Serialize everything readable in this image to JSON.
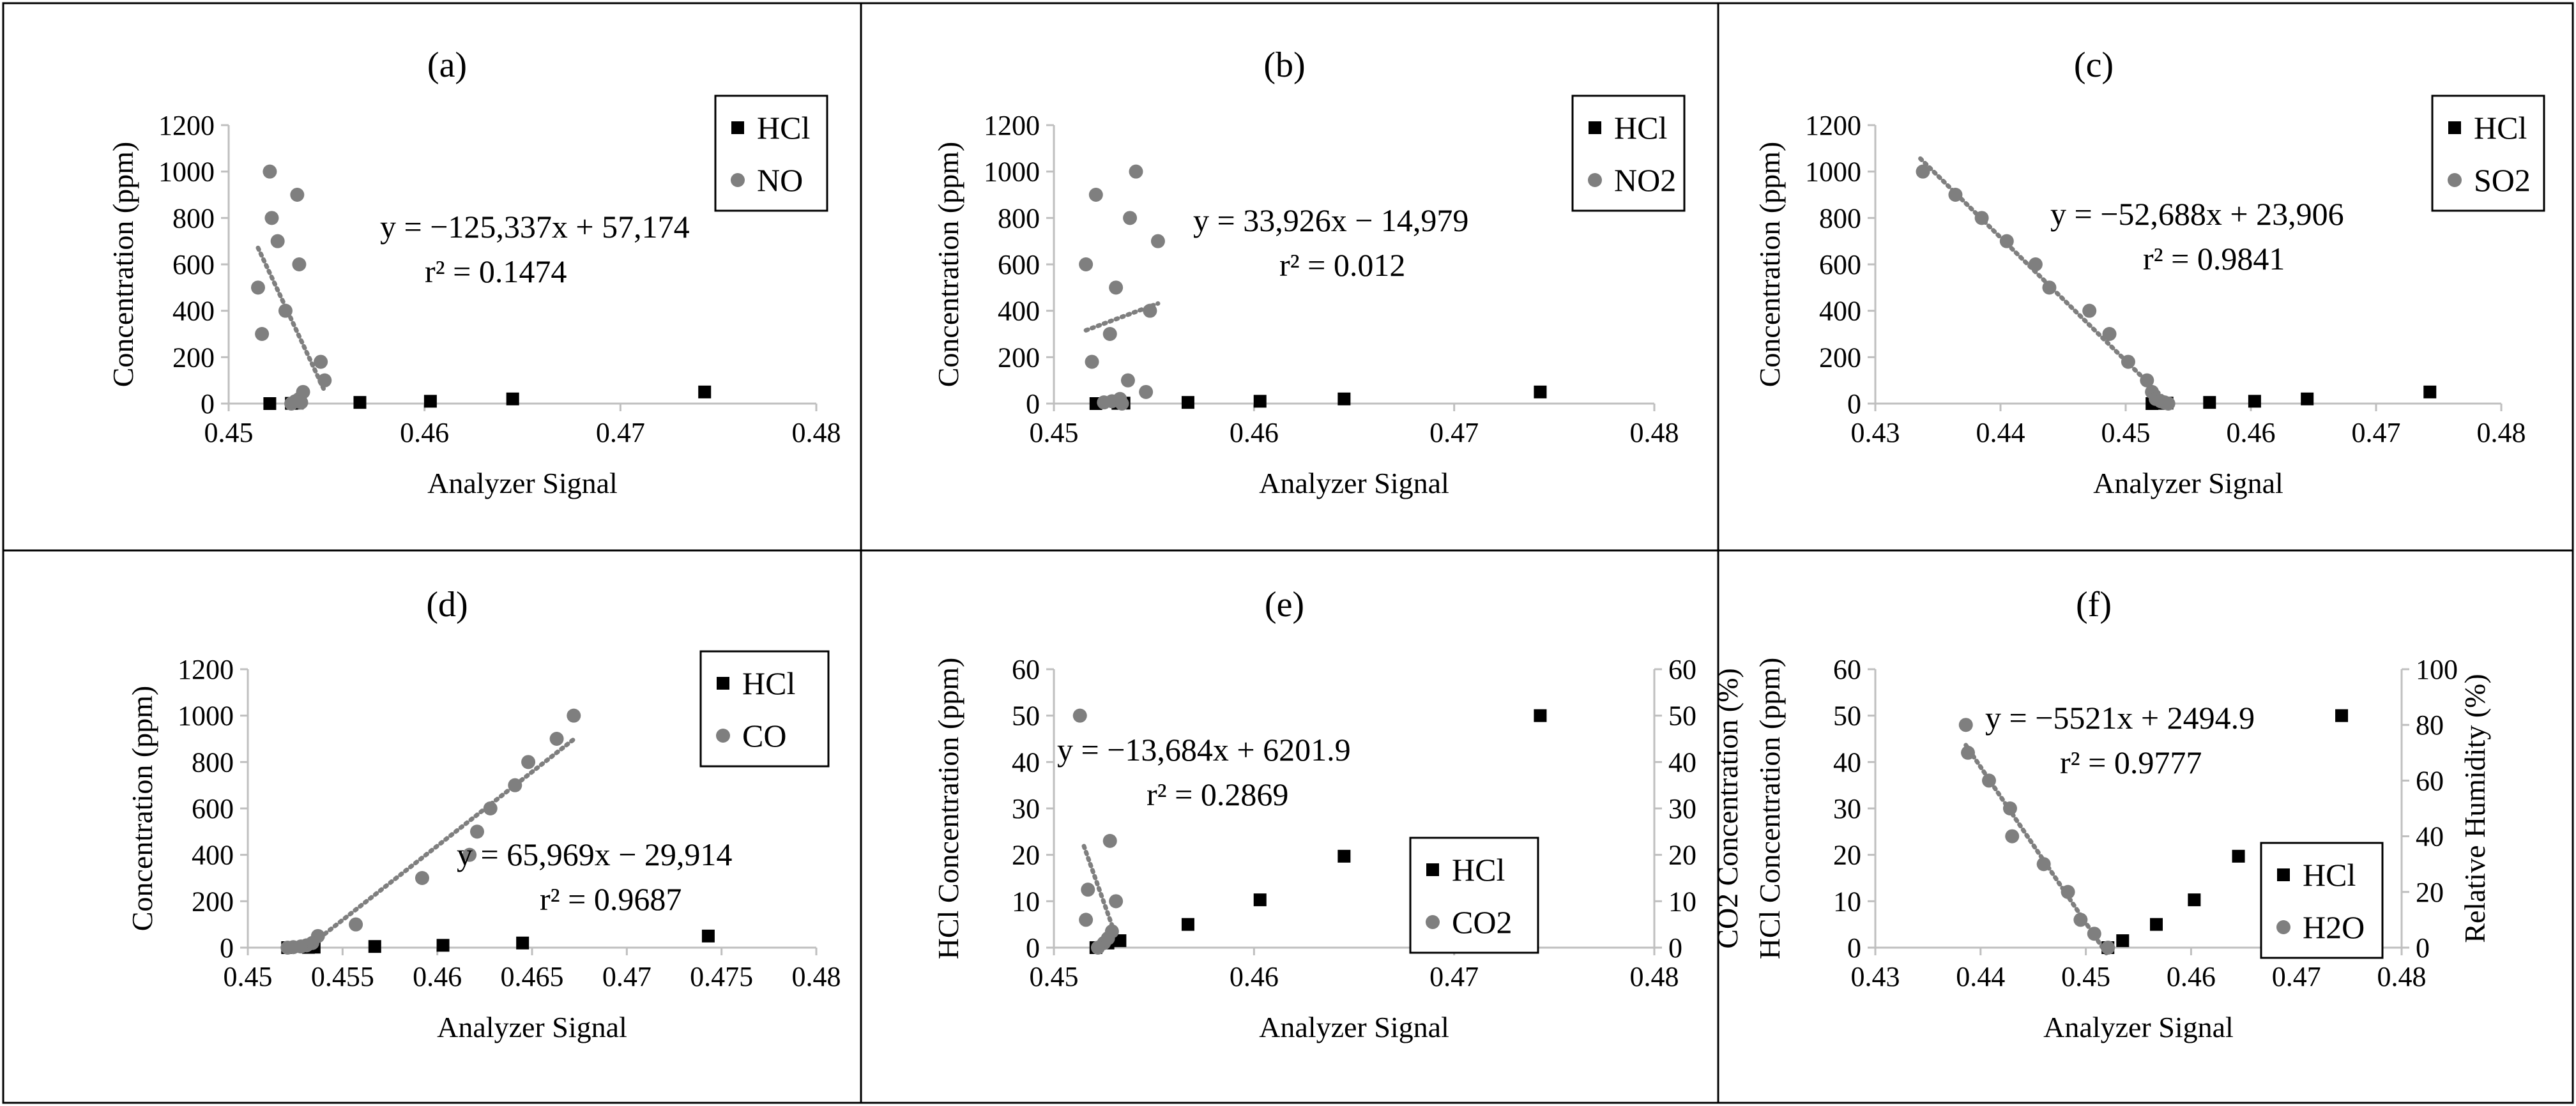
{
  "figure": {
    "description_none": ""
  },
  "chart_data": [
    {
      "panel": "(a)",
      "type": "scatter",
      "xlabel": "Analyzer  Signal",
      "ylabel": "Concentration  (ppm)",
      "xlim": [
        0.45,
        0.48
      ],
      "xticks": [
        0.45,
        0.46,
        0.47,
        0.48
      ],
      "xtick_labels": [
        "0.45",
        "0.46",
        "0.47",
        "0.48"
      ],
      "ylim": [
        0,
        1200
      ],
      "yticks": [
        0,
        200,
        400,
        600,
        800,
        1000,
        1200
      ],
      "legend": {
        "position": "top-right",
        "entries": [
          "HCl",
          "NO"
        ]
      },
      "series": [
        {
          "name": "HCl",
          "marker": "square",
          "color": "#000000",
          "x": [
            0.4521,
            0.4532,
            0.4535,
            0.4567,
            0.4603,
            0.4645,
            0.4743
          ],
          "y": [
            0,
            1,
            2,
            5,
            10,
            20,
            50
          ]
        },
        {
          "name": "NO",
          "marker": "circle",
          "color": "#7f7f7f",
          "x": [
            0.4521,
            0.4522,
            0.4515,
            0.4517,
            0.4525,
            0.4529,
            0.4535,
            0.4536,
            0.4547,
            0.4549,
            0.4538,
            0.4536,
            0.4534,
            0.4537,
            0.4532
          ],
          "y": [
            1000,
            800,
            500,
            300,
            700,
            400,
            900,
            600,
            180,
            100,
            50,
            20,
            10,
            5,
            0
          ]
        }
      ],
      "trendline": {
        "series": "NO",
        "x": [
          0.4515,
          0.4549
        ],
        "color": "#7f7f7f",
        "dotted": true
      },
      "equation": "y = −125,337x  + 57,174",
      "r2": "r² = 0.1474"
    },
    {
      "panel": "(b)",
      "type": "scatter",
      "xlabel": "Analyzer  Signal",
      "ylabel": "Concentration  (ppm)",
      "xlim": [
        0.45,
        0.48
      ],
      "xticks": [
        0.45,
        0.46,
        0.47,
        0.48
      ],
      "xtick_labels": [
        "0.45",
        "0.46",
        "0.47",
        "0.48"
      ],
      "ylim": [
        0,
        1200
      ],
      "yticks": [
        0,
        200,
        400,
        600,
        800,
        1000,
        1200
      ],
      "legend": {
        "position": "top-right",
        "entries": [
          "HCl",
          "NO2"
        ]
      },
      "series": [
        {
          "name": "HCl",
          "marker": "square",
          "color": "#000000",
          "x": [
            0.4521,
            0.4532,
            0.4535,
            0.4567,
            0.4603,
            0.4645,
            0.4743
          ],
          "y": [
            0,
            1,
            2,
            5,
            10,
            20,
            50
          ]
        },
        {
          "name": "NO2",
          "marker": "circle",
          "color": "#7f7f7f",
          "x": [
            0.4521,
            0.4541,
            0.4538,
            0.4552,
            0.4516,
            0.4548,
            0.4531,
            0.4528,
            0.4519,
            0.4537,
            0.4546,
            0.4533,
            0.4529,
            0.4525,
            0.4534
          ],
          "y": [
            900,
            1000,
            800,
            700,
            600,
            400,
            500,
            300,
            180,
            100,
            50,
            20,
            10,
            5,
            0
          ]
        }
      ],
      "trendline": {
        "series": "NO2",
        "x": [
          0.4516,
          0.4552
        ],
        "color": "#7f7f7f",
        "dotted": true
      },
      "equation": "y = 33,926x − 14,979",
      "r2": "r² = 0.012"
    },
    {
      "panel": "(c)",
      "type": "scatter",
      "xlabel": "Analyzer  Signal",
      "ylabel": "Concentration  (ppm)",
      "xlim": [
        0.43,
        0.48
      ],
      "xticks": [
        0.43,
        0.44,
        0.45,
        0.46,
        0.47,
        0.48
      ],
      "xtick_labels": [
        "0.43",
        "0.44",
        "0.45",
        "0.46",
        "0.47",
        "0.48"
      ],
      "ylim": [
        0,
        1200
      ],
      "yticks": [
        0,
        200,
        400,
        600,
        800,
        1000,
        1200
      ],
      "legend": {
        "position": "top-right",
        "entries": [
          "HCl",
          "SO2"
        ]
      },
      "series": [
        {
          "name": "HCl",
          "marker": "square",
          "color": "#000000",
          "x": [
            0.4521,
            0.4527,
            0.4533,
            0.4567,
            0.4603,
            0.4645,
            0.4743
          ],
          "y": [
            0,
            1,
            2,
            5,
            10,
            20,
            50
          ]
        },
        {
          "name": "SO2",
          "marker": "circle",
          "color": "#7f7f7f",
          "x": [
            0.4338,
            0.4364,
            0.4385,
            0.4405,
            0.4428,
            0.4439,
            0.4471,
            0.4487,
            0.4502,
            0.4517,
            0.4521,
            0.4524,
            0.4528,
            0.4531,
            0.4534
          ],
          "y": [
            1000,
            900,
            800,
            700,
            600,
            500,
            400,
            300,
            180,
            100,
            50,
            20,
            10,
            5,
            0
          ]
        }
      ],
      "trendline": {
        "series": "SO2",
        "x": [
          0.4336,
          0.4534
        ],
        "color": "#7f7f7f",
        "dotted": true
      },
      "equation": "y = −52,688x + 23,906",
      "r2": "r² = 0.9841"
    },
    {
      "panel": "(d)",
      "type": "scatter",
      "xlabel": "Analyzer  Signal",
      "ylabel": "Concentration  (ppm)",
      "xlim": [
        0.45,
        0.48
      ],
      "xticks": [
        0.45,
        0.455,
        0.46,
        0.465,
        0.47,
        0.475,
        0.48
      ],
      "xtick_labels": [
        "0.45",
        "0.455",
        "0.46",
        "0.465",
        "0.47",
        "0.475",
        "0.48"
      ],
      "ylim": [
        0,
        1200
      ],
      "yticks": [
        0,
        200,
        400,
        600,
        800,
        1000,
        1200
      ],
      "legend": {
        "position": "top-right",
        "entries": [
          "HCl",
          "CO"
        ]
      },
      "series": [
        {
          "name": "HCl",
          "marker": "square",
          "color": "#000000",
          "x": [
            0.4521,
            0.4532,
            0.4535,
            0.4567,
            0.4603,
            0.4645,
            0.4743
          ],
          "y": [
            0,
            1,
            2,
            5,
            10,
            20,
            50
          ]
        },
        {
          "name": "CO",
          "marker": "circle",
          "color": "#7f7f7f",
          "x": [
            0.4672,
            0.4663,
            0.4648,
            0.4641,
            0.4628,
            0.4621,
            0.4617,
            0.4592,
            0.4557,
            0.4537,
            0.4534,
            0.4531,
            0.4528,
            0.4524,
            0.4521
          ],
          "y": [
            1000,
            900,
            800,
            700,
            600,
            500,
            400,
            300,
            100,
            50,
            20,
            10,
            5,
            2,
            0
          ]
        }
      ],
      "trendline": {
        "series": "CO",
        "x": [
          0.453,
          0.4672
        ],
        "color": "#7f7f7f",
        "dotted": true
      },
      "equation": "y = 65,969x − 29,914",
      "r2": "r² = 0.9687"
    },
    {
      "panel": "(e)",
      "type": "scatter",
      "xlabel": "Analyzer  Signal",
      "ylabel": "HCl Concentration  (ppm)",
      "y2label": "CO2 Concentration  (%)",
      "xlim": [
        0.45,
        0.48
      ],
      "xticks": [
        0.45,
        0.46,
        0.47,
        0.48
      ],
      "xtick_labels": [
        "0.45",
        "0.46",
        "0.47",
        "0.48"
      ],
      "ylim": [
        0,
        60
      ],
      "yticks": [
        0,
        10,
        20,
        30,
        40,
        50,
        60
      ],
      "y2lim": [
        0,
        60
      ],
      "y2ticks": [
        0,
        10,
        20,
        30,
        40,
        50,
        60
      ],
      "legend": {
        "position": "bottom-right",
        "entries": [
          "HCl",
          "CO2"
        ]
      },
      "series": [
        {
          "name": "HCl",
          "marker": "square",
          "color": "#000000",
          "axis": "left",
          "x": [
            0.4521,
            0.4527,
            0.4533,
            0.4567,
            0.4603,
            0.4645,
            0.4743
          ],
          "y": [
            0,
            1,
            1.5,
            5,
            10.3,
            19.7,
            50
          ]
        },
        {
          "name": "CO2",
          "marker": "circle",
          "color": "#7f7f7f",
          "axis": "right",
          "x": [
            0.4513,
            0.4528,
            0.4517,
            0.4531,
            0.4516,
            0.4529,
            0.4527,
            0.4525,
            0.4522
          ],
          "y": [
            50,
            23,
            12.5,
            10,
            6,
            3.5,
            2,
            1,
            0
          ]
        }
      ],
      "trendline": {
        "series": "CO2",
        "axis": "right",
        "x": [
          0.4515,
          0.4531
        ],
        "color": "#7f7f7f",
        "dotted": true
      },
      "equation": "y = −13,684x + 6201.9",
      "r2": "r² = 0.2869"
    },
    {
      "panel": "(f)",
      "type": "scatter",
      "xlabel": "Analyzer  Signal",
      "ylabel": "HCl Concentration  (ppm)",
      "y2label": "Relative Humidity  (%)",
      "xlim": [
        0.43,
        0.48
      ],
      "xticks": [
        0.43,
        0.44,
        0.45,
        0.46,
        0.47,
        0.48
      ],
      "xtick_labels": [
        "0.43",
        "0.44",
        "0.45",
        "0.46",
        "0.47",
        "0.48"
      ],
      "ylim": [
        0,
        60
      ],
      "yticks": [
        0,
        10,
        20,
        30,
        40,
        50,
        60
      ],
      "y2lim": [
        0,
        100
      ],
      "y2ticks": [
        0,
        20,
        40,
        60,
        80,
        100
      ],
      "legend": {
        "position": "bottom-right",
        "entries": [
          "HCl",
          "H2O"
        ]
      },
      "series": [
        {
          "name": "HCl",
          "marker": "square",
          "color": "#000000",
          "axis": "left",
          "x": [
            0.4521,
            0.4535,
            0.4567,
            0.4603,
            0.4645,
            0.4743
          ],
          "y": [
            0,
            1.5,
            5,
            10.3,
            19.7,
            50
          ]
        },
        {
          "name": "H2O",
          "marker": "circle",
          "color": "#7f7f7f",
          "axis": "right",
          "x": [
            0.4386,
            0.4388,
            0.4408,
            0.4428,
            0.443,
            0.446,
            0.4483,
            0.4495,
            0.4508,
            0.4521
          ],
          "y": [
            80,
            70,
            60,
            50,
            40,
            30,
            20,
            10,
            5,
            0
          ]
        }
      ],
      "trendline": {
        "series": "H2O",
        "axis": "right",
        "x": [
          0.4386,
          0.4521
        ],
        "color": "#7f7f7f",
        "dotted": true
      },
      "equation": "y = −5521x + 2494.9",
      "r2": "r² = 0.9777"
    }
  ]
}
